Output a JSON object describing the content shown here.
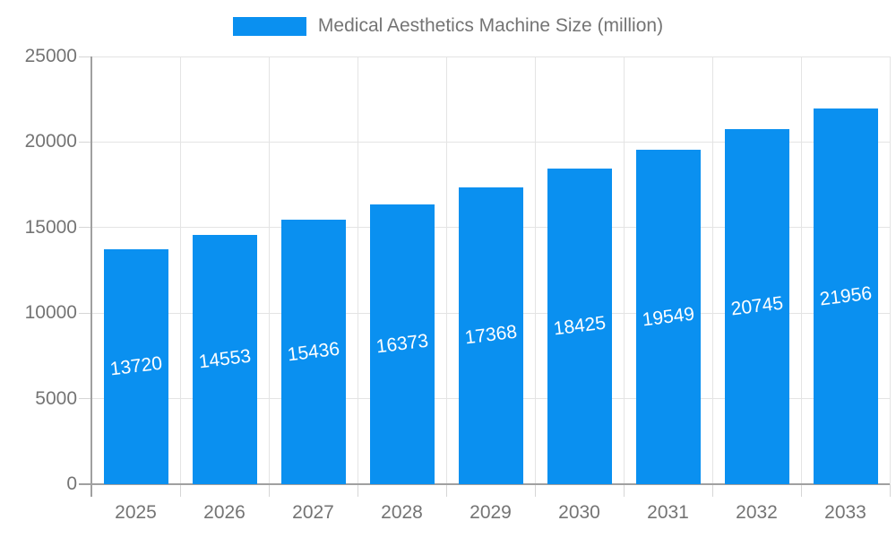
{
  "legend": {
    "label": "Medical Aesthetics Machine Size (million)",
    "swatch_color": "#0A90F0"
  },
  "chart_data": {
    "type": "bar",
    "title": "Medical Aesthetics Machine Size (million)",
    "categories": [
      "2025",
      "2026",
      "2027",
      "2028",
      "2029",
      "2030",
      "2031",
      "2032",
      "2033"
    ],
    "values": [
      13720,
      14553,
      15436,
      16373,
      17368,
      18425,
      19549,
      20745,
      21956
    ],
    "series": [
      {
        "name": "Medical Aesthetics Machine Size (million)",
        "values": [
          13720,
          14553,
          15436,
          16373,
          17368,
          18425,
          19549,
          20745,
          21956
        ]
      }
    ],
    "xlabel": "",
    "ylabel": "",
    "ylim": [
      0,
      25000
    ],
    "yticks": [
      0,
      5000,
      10000,
      15000,
      20000,
      25000
    ],
    "grid": true,
    "legend_position": "top",
    "bar_color": "#0A90F0",
    "bar_label_color": "#FFFFFF",
    "axis_text_color": "#747474",
    "axis_line_color": "#A0A0A0",
    "grid_color": "#E4E4E4",
    "tick_color": "#D6D6D6"
  }
}
